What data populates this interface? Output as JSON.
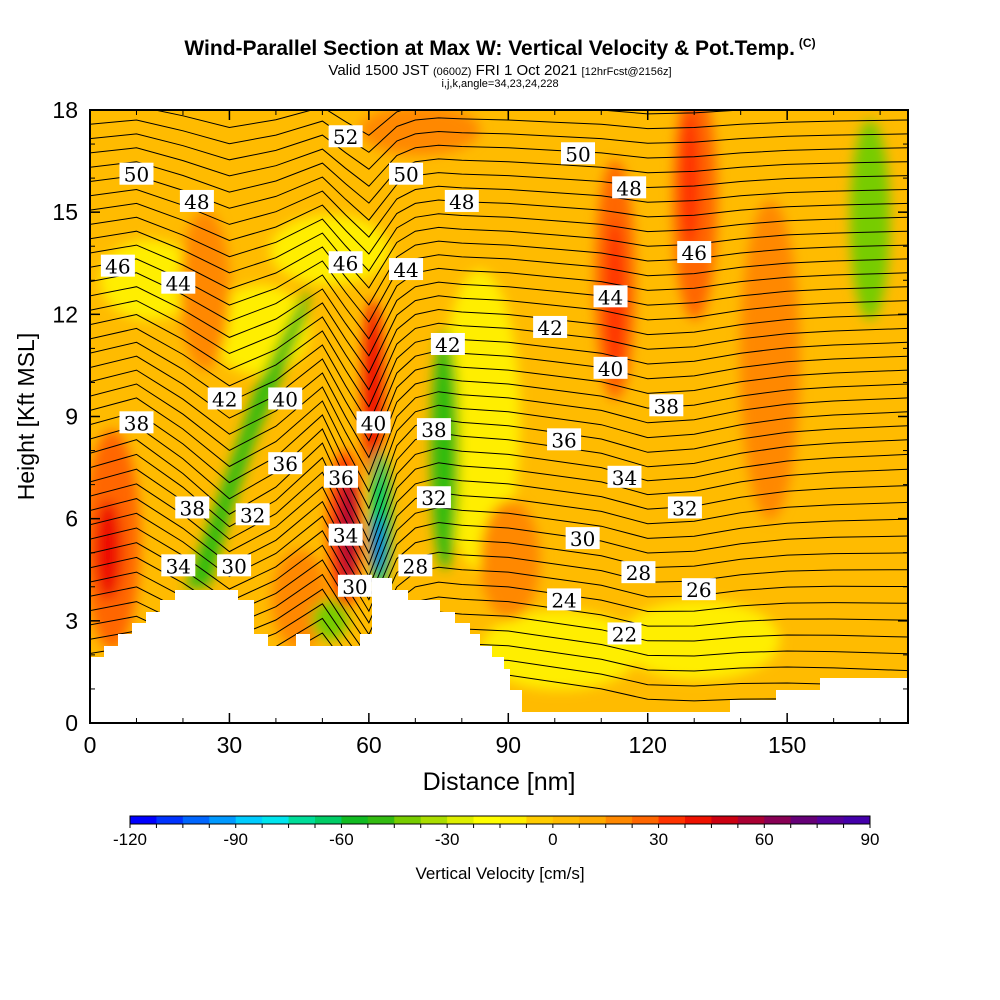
{
  "title": "Wind-Parallel Section at Max W: Vertical Velocity & Pot.Temp.",
  "title_mark": "(C)",
  "subtitle_main": "Valid 1500 JST",
  "subtitle_utc": "(0600Z)",
  "subtitle_date": "FRI 1 Oct 2021",
  "subtitle_fcst": "[12hrFcst@2156z]",
  "meta_line": "i,j,k,angle=34,23,24,228",
  "chart_data": {
    "type": "heatmap",
    "xlabel": "Distance [nm]",
    "ylabel": "Height [Kft MSL]",
    "xlim": [
      0,
      176
    ],
    "ylim": [
      0,
      18
    ],
    "x_ticks": [
      "0",
      "30",
      "60",
      "90",
      "120",
      "150"
    ],
    "y_ticks": [
      "0",
      "3",
      "6",
      "9",
      "12",
      "15",
      "18"
    ],
    "colorbar": {
      "label": "Vertical Velocity [cm/s]",
      "min": -120,
      "max": 90,
      "step": 7.5,
      "tick_labels": [
        "-120",
        "-90",
        "-60",
        "-30",
        "0",
        "30",
        "60",
        "90"
      ],
      "colors": [
        "#0000ff",
        "#0033ff",
        "#0066ff",
        "#0099ff",
        "#00ccff",
        "#00e5ee",
        "#00dd99",
        "#00cc66",
        "#11bb22",
        "#33bb11",
        "#77cc00",
        "#aadd00",
        "#ddee00",
        "#ffff00",
        "#ffee00",
        "#ffcc00",
        "#ffbb00",
        "#ffaa00",
        "#ff8800",
        "#ff6600",
        "#ff3300",
        "#ee1100",
        "#cc0011",
        "#aa0033",
        "#880055",
        "#660077",
        "#550099",
        "#4400aa"
      ]
    },
    "theta_contours": {
      "variable": "Potential Temperature",
      "levels": [
        22,
        24,
        26,
        28,
        30,
        32,
        34,
        36,
        38,
        40,
        42,
        44,
        46,
        48,
        50,
        52
      ],
      "labels": [
        {
          "text": "52",
          "x": 55,
          "y": 17.2
        },
        {
          "text": "50",
          "x": 10,
          "y": 16.1
        },
        {
          "text": "50",
          "x": 68,
          "y": 16.1
        },
        {
          "text": "50",
          "x": 105,
          "y": 16.7
        },
        {
          "text": "48",
          "x": 23,
          "y": 15.3
        },
        {
          "text": "48",
          "x": 80,
          "y": 15.3
        },
        {
          "text": "48",
          "x": 116,
          "y": 15.7
        },
        {
          "text": "46",
          "x": 6,
          "y": 13.4
        },
        {
          "text": "46",
          "x": 55,
          "y": 13.5
        },
        {
          "text": "46",
          "x": 130,
          "y": 13.8
        },
        {
          "text": "44",
          "x": 19,
          "y": 12.9
        },
        {
          "text": "44",
          "x": 68,
          "y": 13.3
        },
        {
          "text": "44",
          "x": 112,
          "y": 12.5
        },
        {
          "text": "42",
          "x": 29,
          "y": 9.5
        },
        {
          "text": "42",
          "x": 77,
          "y": 11.1
        },
        {
          "text": "42",
          "x": 99,
          "y": 11.6
        },
        {
          "text": "40",
          "x": 42,
          "y": 9.5
        },
        {
          "text": "40",
          "x": 61,
          "y": 8.8
        },
        {
          "text": "40",
          "x": 112,
          "y": 10.4
        },
        {
          "text": "38",
          "x": 10,
          "y": 8.8
        },
        {
          "text": "38",
          "x": 22,
          "y": 6.3
        },
        {
          "text": "38",
          "x": 74,
          "y": 8.6
        },
        {
          "text": "38",
          "x": 124,
          "y": 9.3
        },
        {
          "text": "36",
          "x": 42,
          "y": 7.6
        },
        {
          "text": "36",
          "x": 54,
          "y": 7.2
        },
        {
          "text": "36",
          "x": 102,
          "y": 8.3
        },
        {
          "text": "34",
          "x": 19,
          "y": 4.6
        },
        {
          "text": "34",
          "x": 55,
          "y": 5.5
        },
        {
          "text": "34",
          "x": 115,
          "y": 7.2
        },
        {
          "text": "32",
          "x": 35,
          "y": 6.1
        },
        {
          "text": "32",
          "x": 74,
          "y": 6.6
        },
        {
          "text": "32",
          "x": 128,
          "y": 6.3
        },
        {
          "text": "30",
          "x": 31,
          "y": 4.6
        },
        {
          "text": "30",
          "x": 57,
          "y": 4.0
        },
        {
          "text": "30",
          "x": 106,
          "y": 5.4
        },
        {
          "text": "28",
          "x": 70,
          "y": 4.6
        },
        {
          "text": "28",
          "x": 118,
          "y": 4.4
        },
        {
          "text": "26",
          "x": 131,
          "y": 3.9
        },
        {
          "text": "24",
          "x": 102,
          "y": 3.6
        },
        {
          "text": "22",
          "x": 115,
          "y": 2.6
        }
      ]
    }
  }
}
